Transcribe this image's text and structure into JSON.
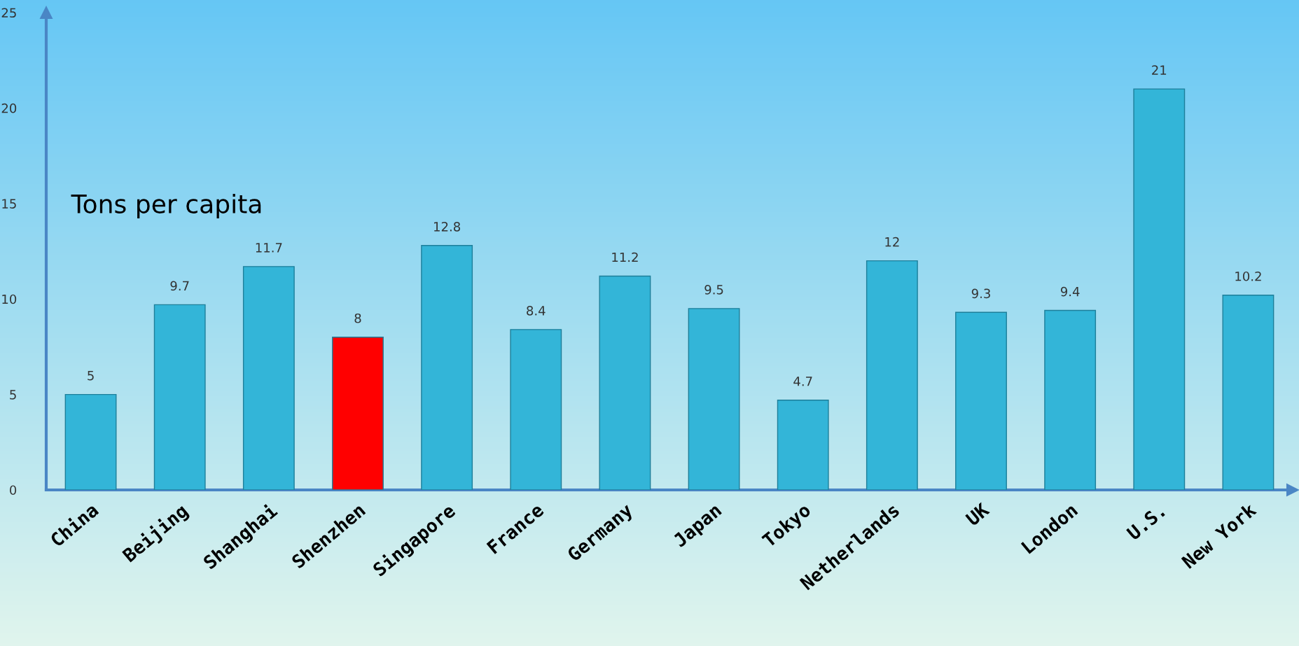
{
  "chart_data": {
    "type": "bar",
    "ylabel": "Tons per capita",
    "categories": [
      "China",
      "Beijing",
      "Shanghai",
      "Shenzhen",
      "Singapore",
      "France",
      "Germany",
      "Japan",
      "Tokyo",
      "Netherlands",
      "UK",
      "London",
      "U.S.",
      "New York"
    ],
    "values": [
      5,
      9.7,
      11.7,
      8,
      12.8,
      8.4,
      11.2,
      9.5,
      4.7,
      12,
      9.3,
      9.4,
      21,
      10.2
    ],
    "colors": [
      "#33b5d8",
      "#33b5d8",
      "#33b5d8",
      "#ff0000",
      "#33b5d8",
      "#33b5d8",
      "#33b5d8",
      "#33b5d8",
      "#33b5d8",
      "#33b5d8",
      "#33b5d8",
      "#33b5d8",
      "#33b5d8",
      "#33b5d8"
    ],
    "ylim": [
      0,
      25
    ],
    "yticks": [
      0,
      5,
      10,
      15,
      20,
      25
    ],
    "data_labels": true,
    "grid": false,
    "legend": false
  }
}
